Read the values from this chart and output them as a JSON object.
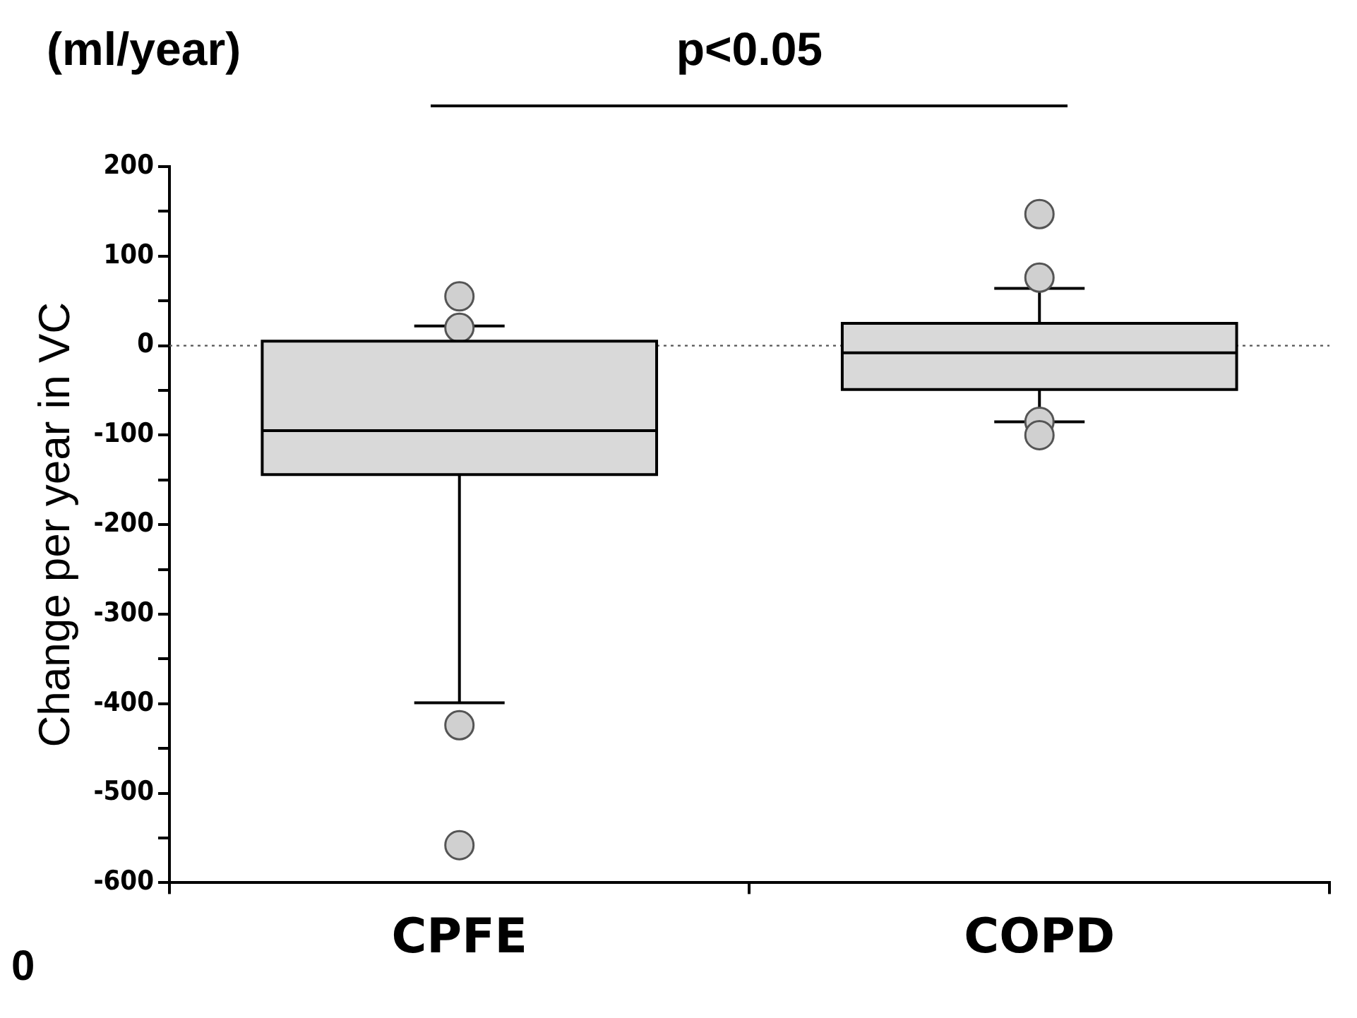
{
  "chart_data": {
    "type": "box",
    "categories": [
      "CPFE",
      "COPD"
    ],
    "ylabel": "Change per year in VC",
    "annotations": [
      "(ml/year)",
      "p<0.05",
      "0"
    ],
    "ylim": [
      -600,
      200
    ],
    "yticks": [
      {
        "value": -600,
        "label": "-600"
      },
      {
        "value": -550,
        "label": null
      },
      {
        "value": -500,
        "label": "-500"
      },
      {
        "value": -450,
        "label": null
      },
      {
        "value": -400,
        "label": "-400"
      },
      {
        "value": -350,
        "label": null
      },
      {
        "value": -300,
        "label": "-300"
      },
      {
        "value": -250,
        "label": null
      },
      {
        "value": -200,
        "label": "-200"
      },
      {
        "value": -150,
        "label": null
      },
      {
        "value": -100,
        "label": "-100"
      },
      {
        "value": -50,
        "label": null
      },
      0,
      {
        "value": 50,
        "label": null
      },
      100,
      {
        "value": 150,
        "label": null
      },
      200
    ],
    "series": [
      {
        "color": "#d9d9d9",
        "boxes": [
          {
            "low": -399,
            "q1": -144,
            "median": -95,
            "q3": 5,
            "high": 22,
            "outliers": [
              55,
              20,
              -424,
              -558
            ]
          },
          {
            "low": -85,
            "q1": -49,
            "median": -8,
            "q3": 25,
            "high": 64,
            "outliers": [
              147,
              76,
              -85,
              -100
            ]
          }
        ]
      }
    ],
    "ref_lines": [
      {
        "axis": "y",
        "value": 0,
        "color": "#555555",
        "line_style": "dotted"
      }
    ],
    "marker": "circle",
    "grid": false,
    "legend": false
  }
}
